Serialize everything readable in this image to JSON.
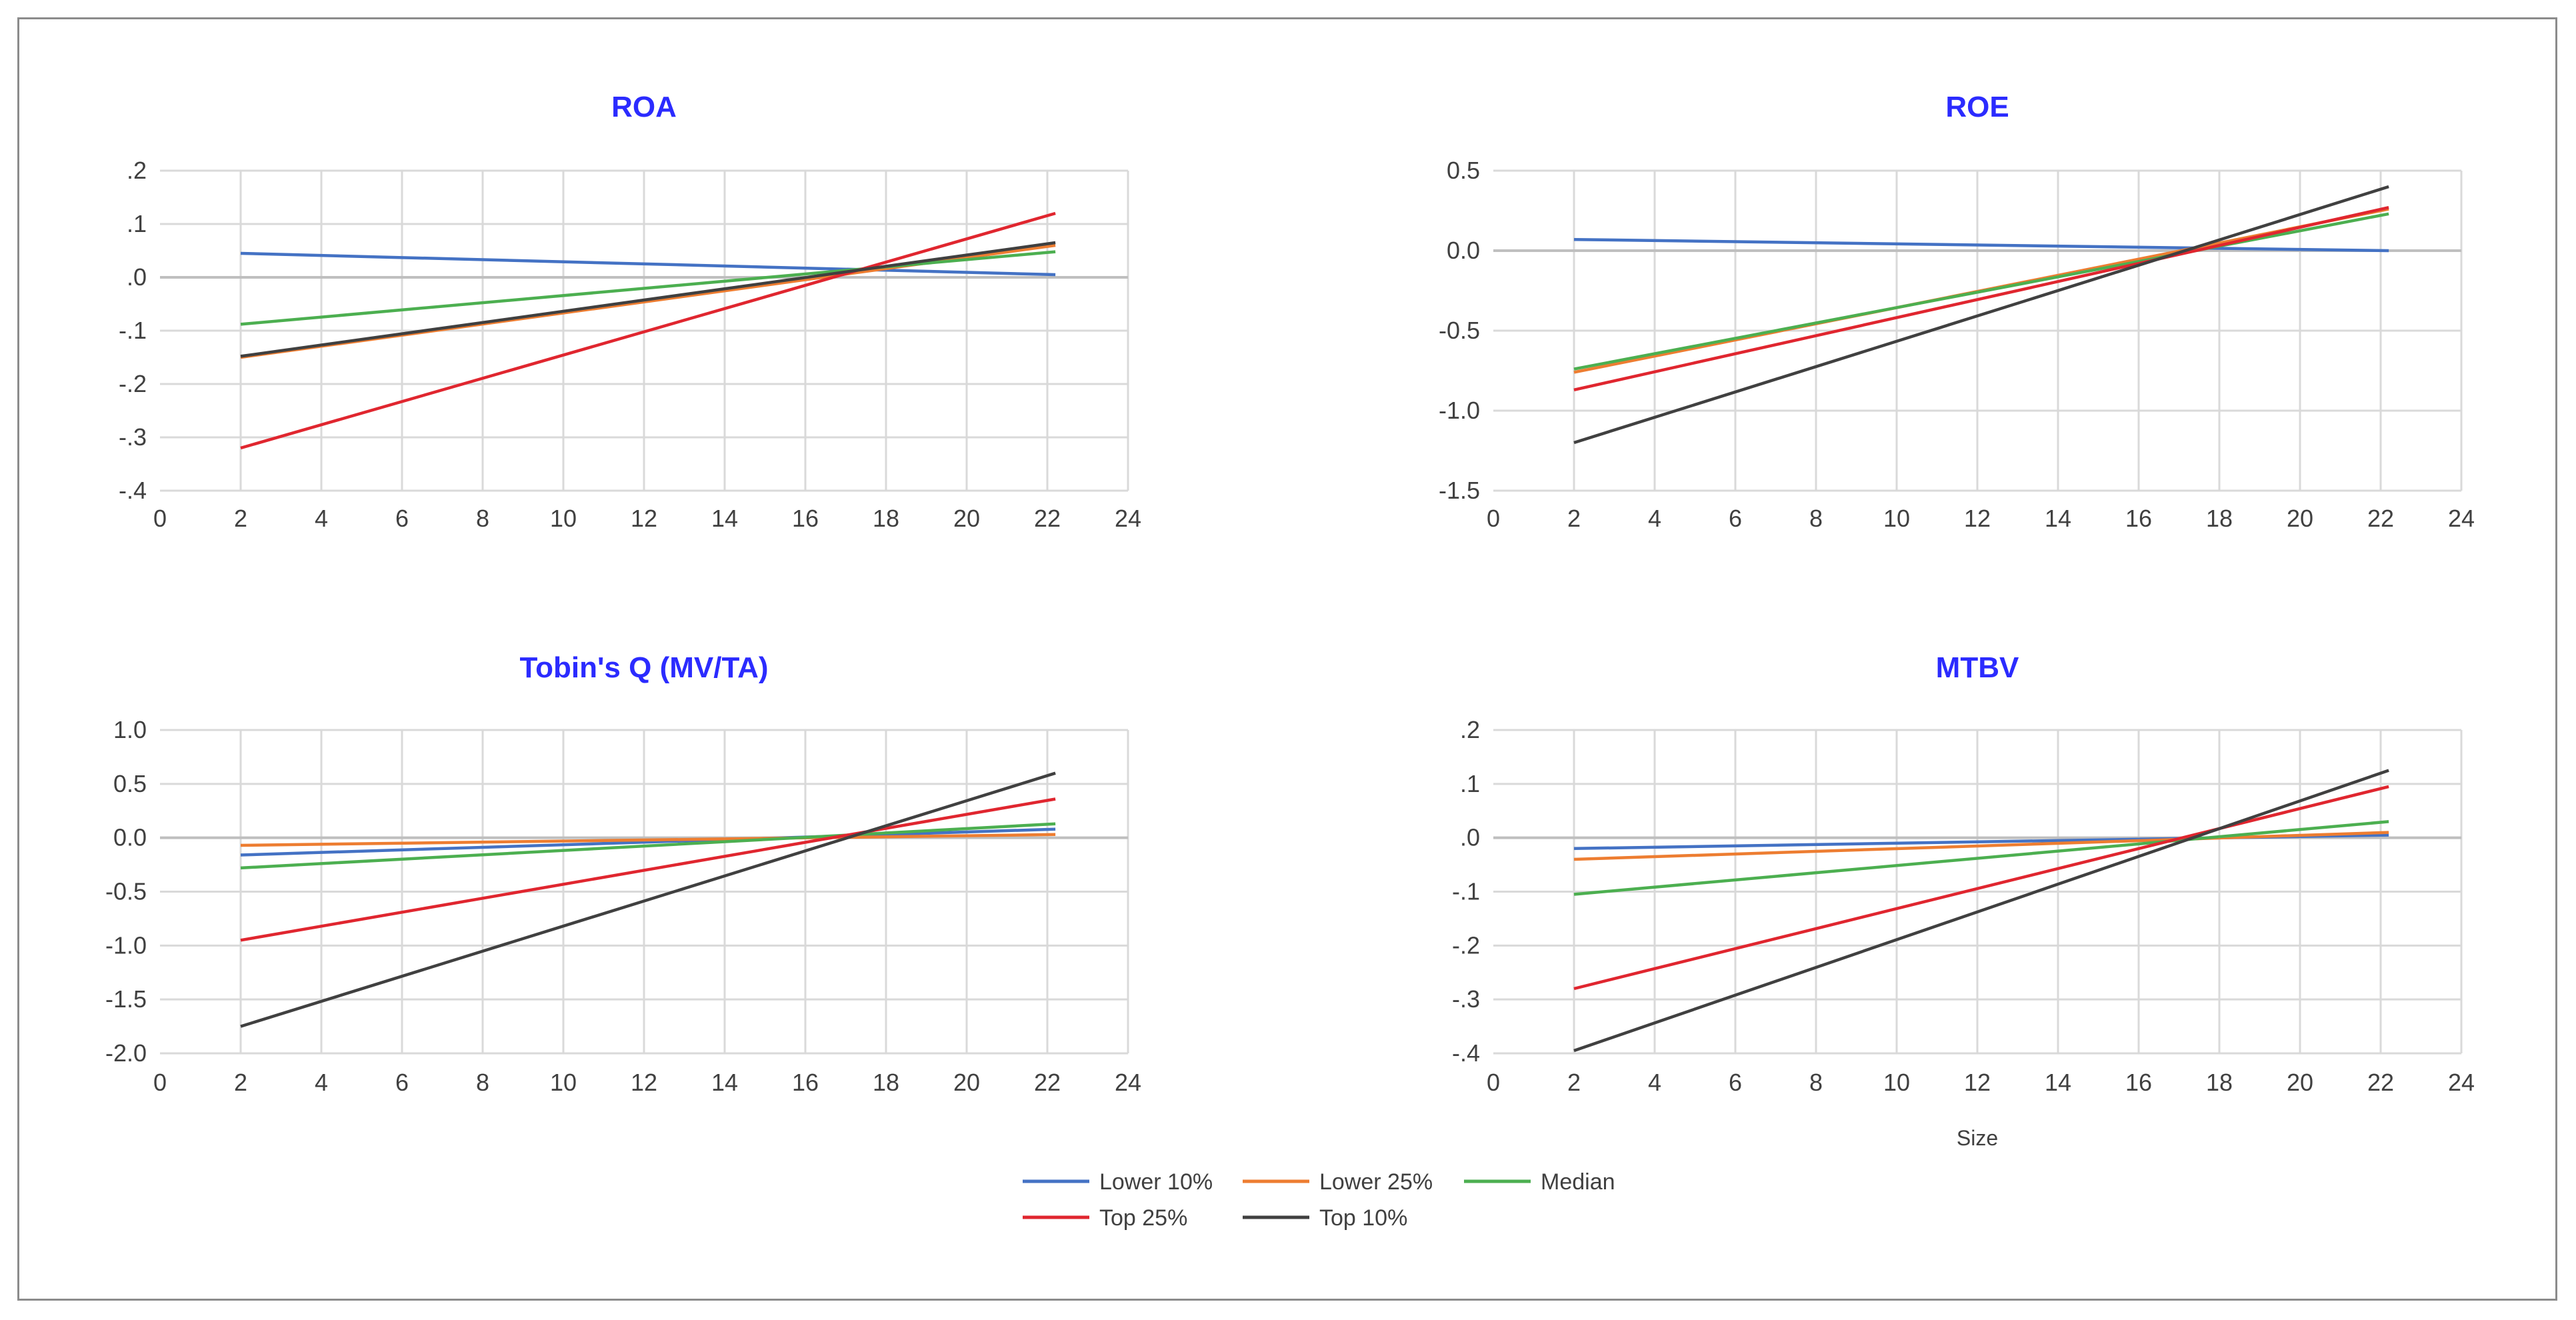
{
  "chart_data": [
    {
      "type": "line",
      "title": "ROA",
      "xlabel": "",
      "ylabel": "",
      "xlim": [
        0,
        24
      ],
      "ylim": [
        -0.4,
        0.2
      ],
      "xticks": [
        "0",
        "2",
        "4",
        "6",
        "8",
        "10",
        "12",
        "14",
        "16",
        "18",
        "20",
        "22",
        "24"
      ],
      "yticks": [
        ".2",
        ".1",
        ".0",
        "-.1",
        "-.2",
        "-.3",
        "-.4"
      ],
      "yticks_values": [
        0.2,
        0.1,
        0.0,
        -0.1,
        -0.2,
        -0.3,
        -0.4
      ],
      "series": [
        {
          "name": "Lower 10%",
          "color": "#4472c4",
          "x": [
            2,
            22.2
          ],
          "y": [
            0.045,
            0.005
          ]
        },
        {
          "name": "Lower 25%",
          "color": "#ed7d31",
          "x": [
            2,
            22.2
          ],
          "y": [
            -0.15,
            0.06
          ]
        },
        {
          "name": "Median",
          "color": "#4caf50",
          "x": [
            2,
            22.2
          ],
          "y": [
            -0.088,
            0.048
          ]
        },
        {
          "name": "Top 25%",
          "color": "#e0262f",
          "x": [
            2,
            22.2
          ],
          "y": [
            -0.32,
            0.12
          ]
        },
        {
          "name": "Top 10%",
          "color": "#404040",
          "x": [
            2,
            22.2
          ],
          "y": [
            -0.148,
            0.065
          ]
        }
      ]
    },
    {
      "type": "line",
      "title": "ROE",
      "xlabel": "",
      "ylabel": "",
      "xlim": [
        0,
        24
      ],
      "ylim": [
        -1.5,
        0.5
      ],
      "xticks": [
        "0",
        "2",
        "4",
        "6",
        "8",
        "10",
        "12",
        "14",
        "16",
        "18",
        "20",
        "22",
        "24"
      ],
      "yticks": [
        "0.5",
        "0.0",
        "-0.5",
        "-1.0",
        "-1.5"
      ],
      "yticks_values": [
        0.5,
        0.0,
        -0.5,
        -1.0,
        -1.5
      ],
      "series": [
        {
          "name": "Lower 10%",
          "color": "#4472c4",
          "x": [
            2,
            22.2
          ],
          "y": [
            0.07,
            0.0
          ]
        },
        {
          "name": "Lower 25%",
          "color": "#ed7d31",
          "x": [
            2,
            22.2
          ],
          "y": [
            -0.76,
            0.26
          ]
        },
        {
          "name": "Median",
          "color": "#4caf50",
          "x": [
            2,
            22.2
          ],
          "y": [
            -0.74,
            0.23
          ]
        },
        {
          "name": "Top 25%",
          "color": "#e0262f",
          "x": [
            2,
            22.2
          ],
          "y": [
            -0.87,
            0.27
          ]
        },
        {
          "name": "Top 10%",
          "color": "#404040",
          "x": [
            2,
            22.2
          ],
          "y": [
            -1.2,
            0.4
          ]
        }
      ]
    },
    {
      "type": "line",
      "title": "Tobin's Q (MV/TA)",
      "xlabel": "",
      "ylabel": "",
      "xlim": [
        0,
        24
      ],
      "ylim": [
        -2.0,
        1.0
      ],
      "xticks": [
        "0",
        "2",
        "4",
        "6",
        "8",
        "10",
        "12",
        "14",
        "16",
        "18",
        "20",
        "22",
        "24"
      ],
      "yticks": [
        "1.0",
        "0.5",
        "0.0",
        "-0.5",
        "-1.0",
        "-1.5",
        "-2.0"
      ],
      "yticks_values": [
        1.0,
        0.5,
        0.0,
        -0.5,
        -1.0,
        -1.5,
        -2.0
      ],
      "series": [
        {
          "name": "Lower 10%",
          "color": "#4472c4",
          "x": [
            2,
            22.2
          ],
          "y": [
            -0.16,
            0.08
          ]
        },
        {
          "name": "Lower 25%",
          "color": "#ed7d31",
          "x": [
            2,
            22.2
          ],
          "y": [
            -0.07,
            0.03
          ]
        },
        {
          "name": "Median",
          "color": "#4caf50",
          "x": [
            2,
            22.2
          ],
          "y": [
            -0.28,
            0.13
          ]
        },
        {
          "name": "Top 25%",
          "color": "#e0262f",
          "x": [
            2,
            22.2
          ],
          "y": [
            -0.95,
            0.36
          ]
        },
        {
          "name": "Top 10%",
          "color": "#404040",
          "x": [
            2,
            22.2
          ],
          "y": [
            -1.75,
            0.6
          ]
        }
      ]
    },
    {
      "type": "line",
      "title": "MTBV",
      "xlabel": "Size",
      "ylabel": "",
      "xlim": [
        0,
        24
      ],
      "ylim": [
        -0.4,
        0.2
      ],
      "xticks": [
        "0",
        "2",
        "4",
        "6",
        "8",
        "10",
        "12",
        "14",
        "16",
        "18",
        "20",
        "22",
        "24"
      ],
      "yticks": [
        ".2",
        ".1",
        ".0",
        "-.1",
        "-.2",
        "-.3",
        "-.4"
      ],
      "yticks_values": [
        0.2,
        0.1,
        0.0,
        -0.1,
        -0.2,
        -0.3,
        -0.4
      ],
      "series": [
        {
          "name": "Lower 10%",
          "color": "#4472c4",
          "x": [
            2,
            22.2
          ],
          "y": [
            -0.02,
            0.005
          ]
        },
        {
          "name": "Lower 25%",
          "color": "#ed7d31",
          "x": [
            2,
            22.2
          ],
          "y": [
            -0.04,
            0.01
          ]
        },
        {
          "name": "Median",
          "color": "#4caf50",
          "x": [
            2,
            22.2
          ],
          "y": [
            -0.105,
            0.03
          ]
        },
        {
          "name": "Top 25%",
          "color": "#e0262f",
          "x": [
            2,
            22.2
          ],
          "y": [
            -0.28,
            0.095
          ]
        },
        {
          "name": "Top 10%",
          "color": "#404040",
          "x": [
            2,
            22.2
          ],
          "y": [
            -0.395,
            0.125
          ]
        }
      ]
    }
  ],
  "legend": {
    "placement": "bottom-center",
    "items": [
      {
        "label": "Lower 10%",
        "color": "#4472c4"
      },
      {
        "label": "Lower 25%",
        "color": "#ed7d31"
      },
      {
        "label": "Median",
        "color": "#4caf50"
      },
      {
        "label": "Top 25%",
        "color": "#e0262f"
      },
      {
        "label": "Top 10%",
        "color": "#404040"
      }
    ]
  },
  "colors": {
    "title": "#2b2bff",
    "grid": "#d9d9d9",
    "zero_line": "#bfbfbf",
    "tick_text": "#404040",
    "border": "#8c8c8c"
  }
}
